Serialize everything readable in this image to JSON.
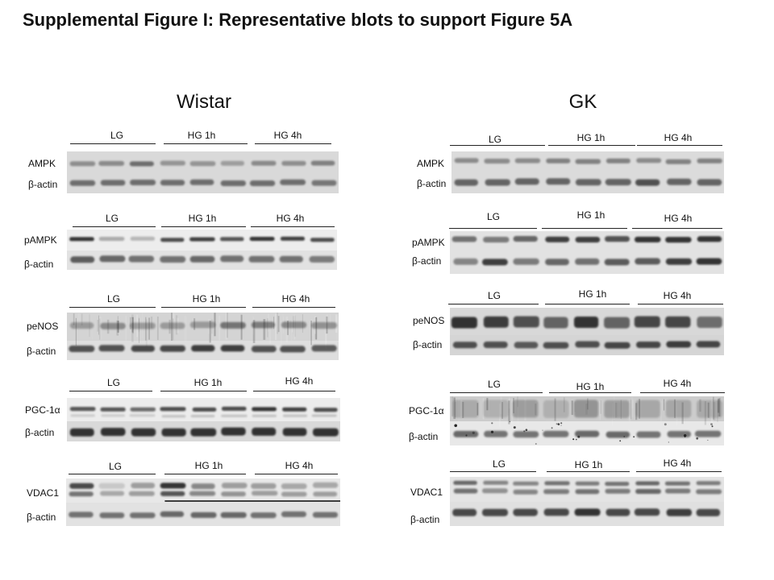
{
  "figure": {
    "title": "Supplemental Figure I: Representative blots to support Figure 5A"
  },
  "columns": [
    {
      "heading": "Wistar",
      "panels": [
        {
          "groups": [
            "LG",
            "HG 1h",
            "HG 4h"
          ],
          "target": "AMPK",
          "loading": "β-actin"
        },
        {
          "groups": [
            "LG",
            "HG 1h",
            "HG 4h"
          ],
          "target": "pAMPK",
          "loading": "β-actin"
        },
        {
          "groups": [
            "LG",
            "HG 1h",
            "HG 4h"
          ],
          "target": "peNOS",
          "loading": "β-actin"
        },
        {
          "groups": [
            "LG",
            "HG 1h",
            "HG 4h"
          ],
          "target": "PGC-1α",
          "loading": "β-actin"
        },
        {
          "groups": [
            "LG",
            "HG 1h",
            "HG 4h"
          ],
          "target": "VDAC1",
          "loading": "β-actin"
        }
      ]
    },
    {
      "heading": "GK",
      "panels": [
        {
          "groups": [
            "LG",
            "HG 1h",
            "HG 4h"
          ],
          "target": "AMPK",
          "loading": "β-actin"
        },
        {
          "groups": [
            "LG",
            "HG 1h",
            "HG 4h"
          ],
          "target": "pAMPK",
          "loading": "β-actin"
        },
        {
          "groups": [
            "LG",
            "HG 1h",
            "HG 4h"
          ],
          "target": "peNOS",
          "loading": "β-actin"
        },
        {
          "groups": [
            "LG",
            "HG 1h",
            "HG 4h"
          ],
          "target": "PGC-1α",
          "loading": "β-actin"
        },
        {
          "groups": [
            "LG",
            "HG 1h",
            "HG 4h"
          ],
          "target": "VDAC1",
          "loading": "β-actin"
        }
      ]
    }
  ]
}
